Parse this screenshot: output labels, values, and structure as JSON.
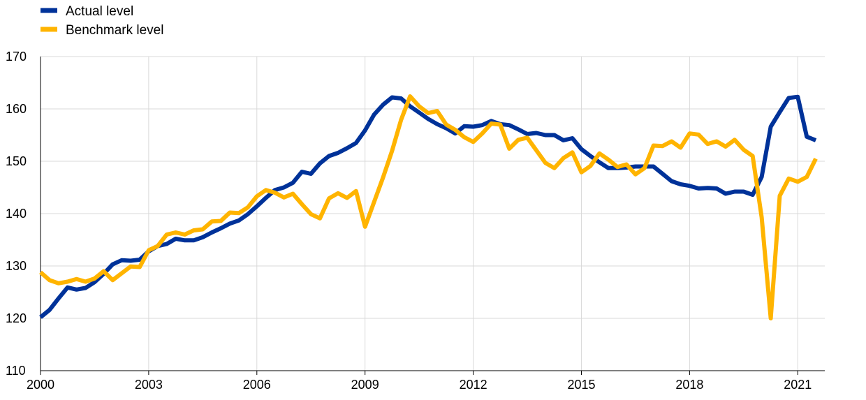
{
  "chart_data": {
    "type": "line",
    "title": "",
    "xlabel": "",
    "ylabel": "",
    "xlim": [
      2000,
      2021.75
    ],
    "ylim": [
      110,
      170
    ],
    "x_ticks": [
      2000,
      2003,
      2006,
      2009,
      2012,
      2015,
      2018,
      2021
    ],
    "y_ticks": [
      110,
      120,
      130,
      140,
      150,
      160,
      170
    ],
    "grid": "both",
    "legend_position": "top-left",
    "series": [
      {
        "name": "Actual level",
        "color": "#003299",
        "x": [
          2000.0,
          2000.25,
          2000.5,
          2000.75,
          2001.0,
          2001.25,
          2001.5,
          2001.75,
          2002.0,
          2002.25,
          2002.5,
          2002.75,
          2003.0,
          2003.25,
          2003.5,
          2003.75,
          2004.0,
          2004.25,
          2004.5,
          2004.75,
          2005.0,
          2005.25,
          2005.5,
          2005.75,
          2006.0,
          2006.25,
          2006.5,
          2006.75,
          2007.0,
          2007.25,
          2007.5,
          2007.75,
          2008.0,
          2008.25,
          2008.5,
          2008.75,
          2009.0,
          2009.25,
          2009.5,
          2009.75,
          2010.0,
          2010.25,
          2010.5,
          2010.75,
          2011.0,
          2011.25,
          2011.5,
          2011.75,
          2012.0,
          2012.25,
          2012.5,
          2012.75,
          2013.0,
          2013.25,
          2013.5,
          2013.75,
          2014.0,
          2014.25,
          2014.5,
          2014.75,
          2015.0,
          2015.25,
          2015.5,
          2015.75,
          2016.0,
          2016.25,
          2016.5,
          2016.75,
          2017.0,
          2017.25,
          2017.5,
          2017.75,
          2018.0,
          2018.25,
          2018.5,
          2018.75,
          2019.0,
          2019.25,
          2019.5,
          2019.75,
          2020.0,
          2020.25,
          2020.5,
          2020.75,
          2021.0,
          2021.25,
          2021.5
        ],
        "values": [
          120.2,
          121.6,
          123.8,
          125.9,
          125.5,
          125.8,
          126.9,
          128.5,
          130.3,
          131.1,
          131.0,
          131.2,
          132.8,
          133.8,
          134.2,
          135.2,
          134.9,
          134.9,
          135.5,
          136.4,
          137.2,
          138.1,
          138.7,
          139.9,
          141.4,
          143.0,
          144.5,
          145.0,
          145.9,
          148.0,
          147.6,
          149.6,
          151.0,
          151.6,
          152.5,
          153.5,
          155.9,
          158.9,
          160.8,
          162.2,
          162.0,
          160.5,
          159.3,
          158.1,
          157.1,
          156.3,
          155.3,
          156.7,
          156.6,
          156.9,
          157.7,
          157.1,
          156.9,
          156.1,
          155.2,
          155.4,
          155.0,
          155.0,
          154.0,
          154.4,
          152.3,
          151.0,
          149.8,
          148.7,
          148.7,
          148.8,
          149.0,
          149.0,
          149.0,
          147.6,
          146.2,
          145.6,
          145.3,
          144.8,
          144.9,
          144.8,
          143.8,
          144.2,
          144.2,
          143.6,
          147.0,
          156.6,
          159.4,
          162.1,
          162.3,
          154.7,
          154.0
        ]
      },
      {
        "name": "Benchmark level",
        "color": "#FFB400",
        "x": [
          2000.0,
          2000.25,
          2000.5,
          2000.75,
          2001.0,
          2001.25,
          2001.5,
          2001.75,
          2002.0,
          2002.25,
          2002.5,
          2002.75,
          2003.0,
          2003.25,
          2003.5,
          2003.75,
          2004.0,
          2004.25,
          2004.5,
          2004.75,
          2005.0,
          2005.25,
          2005.5,
          2005.75,
          2006.0,
          2006.25,
          2006.5,
          2006.75,
          2007.0,
          2007.25,
          2007.5,
          2007.75,
          2008.0,
          2008.25,
          2008.5,
          2008.75,
          2009.0,
          2009.25,
          2009.5,
          2009.75,
          2010.0,
          2010.25,
          2010.5,
          2010.75,
          2011.0,
          2011.25,
          2011.5,
          2011.75,
          2012.0,
          2012.25,
          2012.5,
          2012.75,
          2013.0,
          2013.25,
          2013.5,
          2013.75,
          2014.0,
          2014.25,
          2014.5,
          2014.75,
          2015.0,
          2015.25,
          2015.5,
          2015.75,
          2016.0,
          2016.25,
          2016.5,
          2016.75,
          2017.0,
          2017.25,
          2017.5,
          2017.75,
          2018.0,
          2018.25,
          2018.5,
          2018.75,
          2019.0,
          2019.25,
          2019.5,
          2019.75,
          2020.0,
          2020.25,
          2020.5,
          2020.75,
          2021.0,
          2021.25,
          2021.5
        ],
        "values": [
          128.8,
          127.3,
          126.7,
          127.0,
          127.5,
          127.0,
          127.6,
          129.0,
          127.3,
          128.6,
          129.9,
          129.8,
          133.0,
          133.8,
          136.0,
          136.4,
          136.0,
          136.8,
          137.0,
          138.5,
          138.6,
          140.2,
          140.1,
          141.2,
          143.3,
          144.5,
          144.0,
          143.1,
          143.8,
          141.8,
          139.9,
          139.1,
          142.9,
          143.9,
          143.0,
          144.3,
          137.5,
          142.2,
          146.9,
          152.0,
          157.9,
          162.4,
          160.5,
          159.2,
          159.6,
          157.0,
          156.0,
          154.6,
          153.7,
          155.3,
          157.2,
          157.0,
          152.4,
          154.1,
          154.5,
          152.1,
          149.7,
          148.7,
          150.6,
          151.7,
          147.9,
          149.1,
          151.5,
          150.3,
          148.9,
          149.4,
          147.5,
          148.7,
          153.0,
          152.9,
          153.8,
          152.6,
          155.3,
          155.1,
          153.3,
          153.8,
          152.8,
          154.1,
          152.2,
          151.0,
          139.3,
          120.0,
          143.4,
          146.7,
          146.1,
          147.0,
          150.5
        ]
      }
    ]
  }
}
